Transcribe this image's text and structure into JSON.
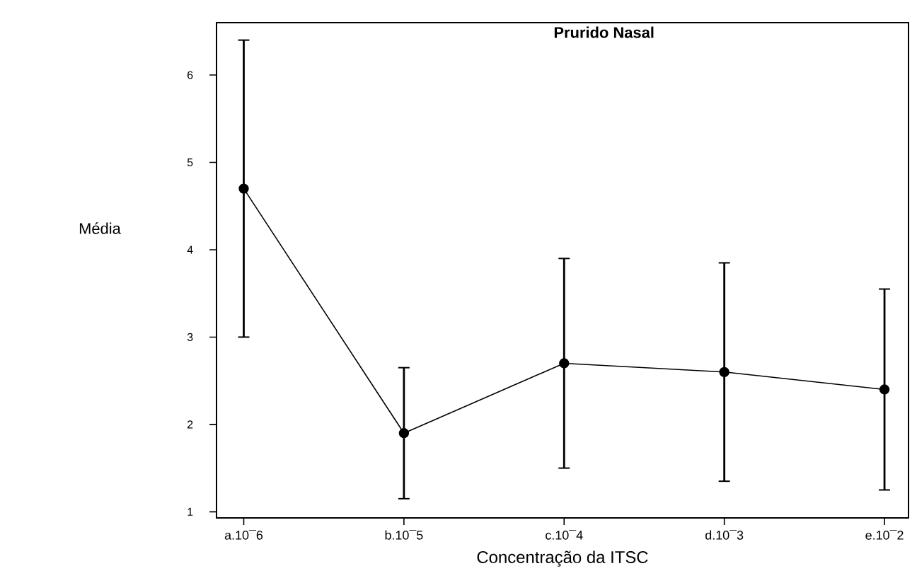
{
  "chart_data": {
    "type": "line",
    "title": "Prurido Nasal",
    "xlabel": "Concentração da ITSC",
    "ylabel": "Média",
    "categories": [
      "a.10¯6",
      "b.10¯5",
      "c.10¯4",
      "d.10¯3",
      "e.10¯2"
    ],
    "series": [
      {
        "color": "#000000",
        "values": [
          4.7,
          1.9,
          2.7,
          2.6,
          2.4
        ],
        "errors": [
          [
            3.0,
            6.4
          ],
          [
            1.15,
            2.65
          ],
          [
            1.5,
            3.9
          ],
          [
            1.35,
            3.85
          ],
          [
            1.25,
            3.55
          ]
        ]
      }
    ],
    "ylim": [
      0.93,
      6.6
    ],
    "yticks": [
      1,
      2,
      3,
      4,
      5,
      6
    ],
    "grid": false,
    "marker": "circle",
    "line_style": "solid"
  }
}
